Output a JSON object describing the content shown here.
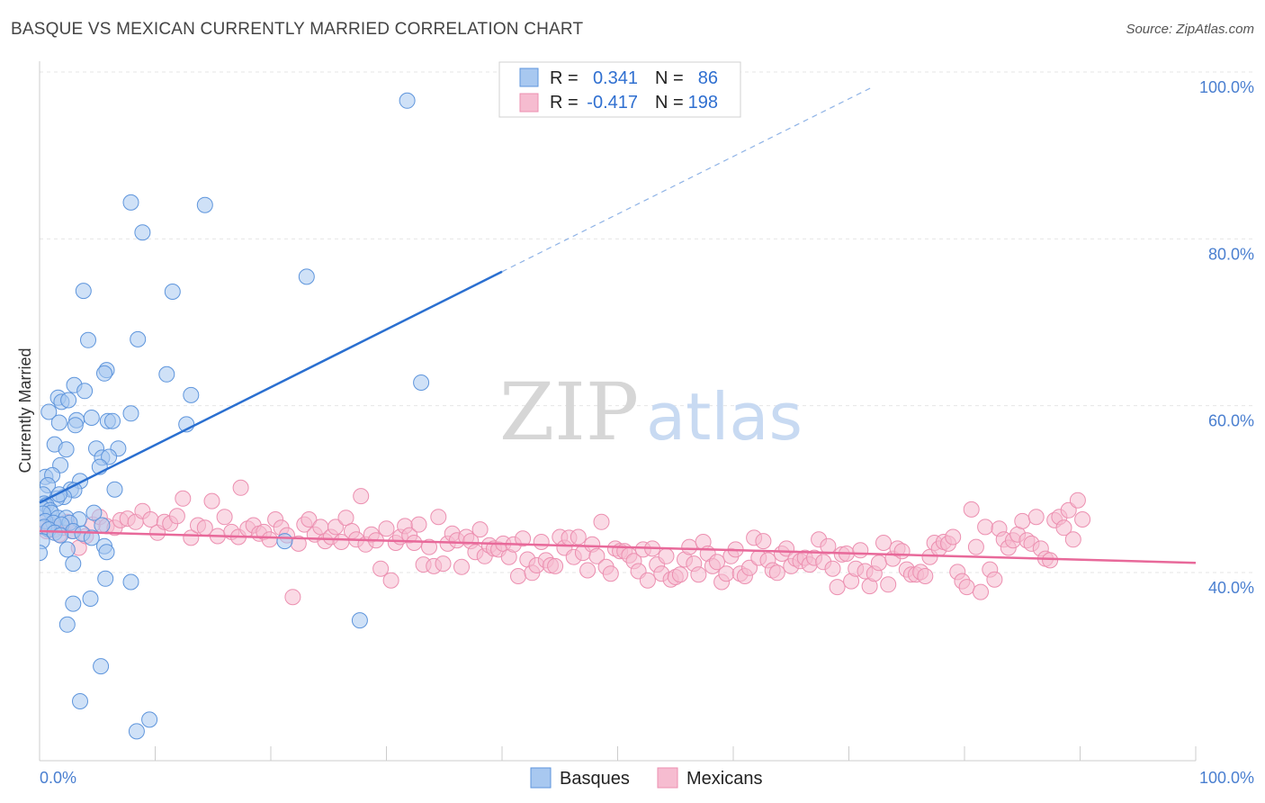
{
  "title": "BASQUE VS MEXICAN CURRENTLY MARRIED CORRELATION CHART",
  "source": "Source: ZipAtlas.com",
  "watermark": {
    "zip": "ZIP",
    "atlas": "atlas"
  },
  "chart_data": {
    "type": "scatter",
    "title": "BASQUE VS MEXICAN CURRENTLY MARRIED CORRELATION CHART",
    "xlabel": "",
    "ylabel": "Currently Married",
    "xlim": [
      0,
      100
    ],
    "ylim": [
      20,
      102
    ],
    "x_tick_labels": {
      "left": "0.0%",
      "right": "100.0%"
    },
    "y_ticks": [
      {
        "value": 100,
        "label": "100.0%"
      },
      {
        "value": 80,
        "label": "80.0%"
      },
      {
        "value": 60,
        "label": "60.0%"
      },
      {
        "value": 40,
        "label": "40.0%"
      }
    ],
    "grid": true,
    "legend_placement": "top-center",
    "series": [
      {
        "name": "Basques",
        "color": "#a8c8f0",
        "edge_color": "#5e95dc",
        "line_color": "#2a6fd0",
        "stats": {
          "r_label": "R =",
          "r": "0.341",
          "n_label": "N =",
          "n": "86"
        },
        "trend": {
          "x0": 0,
          "y0": 50.2,
          "x1": 40,
          "y1": 77.9,
          "dashed_to_x": 72,
          "dashed_to_y": 100
        },
        "points": [
          [
            31.8,
            98.4
          ],
          [
            7.9,
            86.2
          ],
          [
            14.3,
            85.9
          ],
          [
            8.9,
            82.6
          ],
          [
            23.1,
            77.3
          ],
          [
            3.8,
            75.6
          ],
          [
            11.5,
            75.5
          ],
          [
            4.2,
            69.7
          ],
          [
            8.5,
            69.8
          ],
          [
            5.8,
            66.1
          ],
          [
            5.6,
            65.7
          ],
          [
            11.0,
            65.6
          ],
          [
            33.0,
            64.6
          ],
          [
            3.0,
            64.3
          ],
          [
            3.9,
            63.6
          ],
          [
            13.1,
            63.1
          ],
          [
            1.6,
            62.8
          ],
          [
            1.9,
            62.3
          ],
          [
            2.5,
            62.5
          ],
          [
            0.8,
            61.1
          ],
          [
            7.9,
            60.9
          ],
          [
            4.5,
            60.4
          ],
          [
            3.2,
            60.1
          ],
          [
            5.9,
            60.0
          ],
          [
            6.3,
            60.0
          ],
          [
            1.7,
            59.8
          ],
          [
            3.1,
            59.5
          ],
          [
            12.7,
            59.6
          ],
          [
            1.3,
            57.2
          ],
          [
            2.3,
            56.6
          ],
          [
            4.9,
            56.7
          ],
          [
            6.8,
            56.7
          ],
          [
            5.4,
            55.6
          ],
          [
            6.0,
            55.7
          ],
          [
            1.8,
            54.7
          ],
          [
            5.2,
            54.5
          ],
          [
            0.5,
            53.3
          ],
          [
            1.1,
            53.5
          ],
          [
            3.5,
            52.8
          ],
          [
            0.7,
            52.3
          ],
          [
            2.7,
            51.8
          ],
          [
            3.0,
            51.7
          ],
          [
            6.5,
            51.8
          ],
          [
            0.3,
            51.2
          ],
          [
            2.1,
            50.9
          ],
          [
            1.5,
            50.7
          ],
          [
            1.7,
            51.2
          ],
          [
            0.4,
            50.1
          ],
          [
            0.6,
            49.9
          ],
          [
            0.2,
            49.6
          ],
          [
            0.9,
            49.3
          ],
          [
            1.0,
            49.0
          ],
          [
            0.3,
            48.9
          ],
          [
            4.7,
            49.0
          ],
          [
            1.6,
            48.4
          ],
          [
            2.3,
            48.4
          ],
          [
            3.4,
            48.2
          ],
          [
            0.5,
            48.0
          ],
          [
            1.2,
            47.8
          ],
          [
            2.6,
            47.8
          ],
          [
            1.9,
            47.6
          ],
          [
            0.4,
            47.3
          ],
          [
            5.4,
            47.5
          ],
          [
            0.8,
            47.0
          ],
          [
            1.3,
            46.6
          ],
          [
            2.9,
            46.8
          ],
          [
            1.8,
            46.3
          ],
          [
            3.7,
            46.5
          ],
          [
            4.5,
            46.0
          ],
          [
            0.2,
            45.6
          ],
          [
            5.6,
            45.0
          ],
          [
            2.4,
            44.6
          ],
          [
            5.8,
            44.3
          ],
          [
            21.2,
            45.6
          ],
          [
            0.0,
            44.2
          ],
          [
            2.9,
            42.9
          ],
          [
            5.7,
            41.1
          ],
          [
            7.9,
            40.7
          ],
          [
            4.4,
            38.7
          ],
          [
            2.9,
            38.1
          ],
          [
            27.7,
            36.1
          ],
          [
            2.4,
            35.6
          ],
          [
            5.3,
            30.6
          ],
          [
            3.5,
            26.4
          ],
          [
            9.5,
            24.2
          ],
          [
            8.4,
            22.8
          ]
        ]
      },
      {
        "name": "Mexicans",
        "color": "#f6bcd0",
        "edge_color": "#ec8fb0",
        "line_color": "#e8699a",
        "stats": {
          "r_label": "R =",
          "r": "-0.417",
          "n_label": "N =",
          "n": "198"
        },
        "trend": {
          "x0": 0,
          "y0": 46.8,
          "x1": 100,
          "y1": 43.0
        },
        "points": [
          [
            0.3,
            47.9
          ],
          [
            0.6,
            46.8
          ],
          [
            1.0,
            47.5
          ],
          [
            1.3,
            47.0
          ],
          [
            1.7,
            46.4
          ],
          [
            2.0,
            47.2
          ],
          [
            2.4,
            47.9
          ],
          [
            2.8,
            46.8
          ],
          [
            3.4,
            44.8
          ],
          [
            4.0,
            46.2
          ],
          [
            4.6,
            47.6
          ],
          [
            5.2,
            48.5
          ],
          [
            5.8,
            47.4
          ],
          [
            6.5,
            47.2
          ],
          [
            7.0,
            48.1
          ],
          [
            7.6,
            48.3
          ],
          [
            8.3,
            47.9
          ],
          [
            8.9,
            49.2
          ],
          [
            9.6,
            48.2
          ],
          [
            10.2,
            46.6
          ],
          [
            10.8,
            47.9
          ],
          [
            11.3,
            47.7
          ],
          [
            11.9,
            48.6
          ],
          [
            12.4,
            50.7
          ],
          [
            13.1,
            46.0
          ],
          [
            13.7,
            47.5
          ],
          [
            14.3,
            47.2
          ],
          [
            14.9,
            50.4
          ],
          [
            15.4,
            46.2
          ],
          [
            16.0,
            48.5
          ],
          [
            16.6,
            46.7
          ],
          [
            17.2,
            46.1
          ],
          [
            17.4,
            52.0
          ],
          [
            18.0,
            47.1
          ],
          [
            18.5,
            47.5
          ],
          [
            19.0,
            46.5
          ],
          [
            19.4,
            46.7
          ],
          [
            19.9,
            45.8
          ],
          [
            20.4,
            48.2
          ],
          [
            20.9,
            47.2
          ],
          [
            21.4,
            46.3
          ],
          [
            21.9,
            38.9
          ],
          [
            22.4,
            45.3
          ],
          [
            22.9,
            47.6
          ],
          [
            23.3,
            48.2
          ],
          [
            23.8,
            46.4
          ],
          [
            24.3,
            47.3
          ],
          [
            24.7,
            45.6
          ],
          [
            25.2,
            46.1
          ],
          [
            25.6,
            47.3
          ],
          [
            26.1,
            45.5
          ],
          [
            26.5,
            48.4
          ],
          [
            27.0,
            46.8
          ],
          [
            27.4,
            45.8
          ],
          [
            27.8,
            51.0
          ],
          [
            28.2,
            45.2
          ],
          [
            28.7,
            46.4
          ],
          [
            29.1,
            45.7
          ],
          [
            29.5,
            42.3
          ],
          [
            30.0,
            47.1
          ],
          [
            30.4,
            40.9
          ],
          [
            30.8,
            45.4
          ],
          [
            31.2,
            46.1
          ],
          [
            31.6,
            47.4
          ],
          [
            32.0,
            46.3
          ],
          [
            32.4,
            45.4
          ],
          [
            32.8,
            47.6
          ],
          [
            33.2,
            42.8
          ],
          [
            33.7,
            44.9
          ],
          [
            34.1,
            42.6
          ],
          [
            34.5,
            48.5
          ],
          [
            34.9,
            42.9
          ],
          [
            35.3,
            45.3
          ],
          [
            35.7,
            46.5
          ],
          [
            36.1,
            45.7
          ],
          [
            36.5,
            42.5
          ],
          [
            36.9,
            46.1
          ],
          [
            37.3,
            45.6
          ],
          [
            37.7,
            44.3
          ],
          [
            38.1,
            47.0
          ],
          [
            38.5,
            43.8
          ],
          [
            38.9,
            45.1
          ],
          [
            39.3,
            44.7
          ],
          [
            39.7,
            44.6
          ],
          [
            40.1,
            45.3
          ],
          [
            40.6,
            43.7
          ],
          [
            41.0,
            45.2
          ],
          [
            41.4,
            41.4
          ],
          [
            41.8,
            45.9
          ],
          [
            42.2,
            43.4
          ],
          [
            42.6,
            41.8
          ],
          [
            43.0,
            42.7
          ],
          [
            43.4,
            45.5
          ],
          [
            43.8,
            43.3
          ],
          [
            44.2,
            42.7
          ],
          [
            44.6,
            42.6
          ],
          [
            45.0,
            46.1
          ],
          [
            45.4,
            44.8
          ],
          [
            45.8,
            46.0
          ],
          [
            46.2,
            43.7
          ],
          [
            46.6,
            46.1
          ],
          [
            47.0,
            44.2
          ],
          [
            47.4,
            42.1
          ],
          [
            47.8,
            45.2
          ],
          [
            48.2,
            43.8
          ],
          [
            48.6,
            47.9
          ],
          [
            49.0,
            42.5
          ],
          [
            49.4,
            41.7
          ],
          [
            49.8,
            44.7
          ],
          [
            50.2,
            44.4
          ],
          [
            50.6,
            44.4
          ],
          [
            51.0,
            43.9
          ],
          [
            51.4,
            43.2
          ],
          [
            51.8,
            42.0
          ],
          [
            52.2,
            44.6
          ],
          [
            52.6,
            40.9
          ],
          [
            53.0,
            44.7
          ],
          [
            53.4,
            42.8
          ],
          [
            53.8,
            41.7
          ],
          [
            54.2,
            43.8
          ],
          [
            54.6,
            41.0
          ],
          [
            55.0,
            41.3
          ],
          [
            55.4,
            41.6
          ],
          [
            55.8,
            43.4
          ],
          [
            56.2,
            44.9
          ],
          [
            56.6,
            42.9
          ],
          [
            57.0,
            41.6
          ],
          [
            57.4,
            45.5
          ],
          [
            57.8,
            44.1
          ],
          [
            58.2,
            42.6
          ],
          [
            58.6,
            43.1
          ],
          [
            59.0,
            40.7
          ],
          [
            59.4,
            41.7
          ],
          [
            59.8,
            43.8
          ],
          [
            60.2,
            44.6
          ],
          [
            60.6,
            41.7
          ],
          [
            61.0,
            41.4
          ],
          [
            61.4,
            42.4
          ],
          [
            61.8,
            46.0
          ],
          [
            62.2,
            43.6
          ],
          [
            62.6,
            45.6
          ],
          [
            63.0,
            43.3
          ],
          [
            63.4,
            42.1
          ],
          [
            63.8,
            41.8
          ],
          [
            64.2,
            44.1
          ],
          [
            64.6,
            44.7
          ],
          [
            65.0,
            42.6
          ],
          [
            65.4,
            43.5
          ],
          [
            65.8,
            43.2
          ],
          [
            66.2,
            43.6
          ],
          [
            66.6,
            42.8
          ],
          [
            67.0,
            43.6
          ],
          [
            67.4,
            45.8
          ],
          [
            67.8,
            43.1
          ],
          [
            68.2,
            45.0
          ],
          [
            68.6,
            42.3
          ],
          [
            69.0,
            40.1
          ],
          [
            69.4,
            44.0
          ],
          [
            69.8,
            44.1
          ],
          [
            70.2,
            40.8
          ],
          [
            70.6,
            42.3
          ],
          [
            71.0,
            44.5
          ],
          [
            71.4,
            42.0
          ],
          [
            71.8,
            40.2
          ],
          [
            72.2,
            41.7
          ],
          [
            72.6,
            43.0
          ],
          [
            73.0,
            45.4
          ],
          [
            73.4,
            40.4
          ],
          [
            73.8,
            43.5
          ],
          [
            74.2,
            44.7
          ],
          [
            74.6,
            44.4
          ],
          [
            75.0,
            42.2
          ],
          [
            75.4,
            41.6
          ],
          [
            75.8,
            41.6
          ],
          [
            76.2,
            41.9
          ],
          [
            76.6,
            41.4
          ],
          [
            77.0,
            43.7
          ],
          [
            77.4,
            45.4
          ],
          [
            77.8,
            44.7
          ],
          [
            78.2,
            45.5
          ],
          [
            78.6,
            45.3
          ],
          [
            79.0,
            46.1
          ],
          [
            79.4,
            41.9
          ],
          [
            79.8,
            40.8
          ],
          [
            80.2,
            40.1
          ],
          [
            80.6,
            49.4
          ],
          [
            81.0,
            44.9
          ],
          [
            81.4,
            39.5
          ],
          [
            81.8,
            47.3
          ],
          [
            82.2,
            42.2
          ],
          [
            82.6,
            41.0
          ],
          [
            83.0,
            47.1
          ],
          [
            83.4,
            45.8
          ],
          [
            83.8,
            44.8
          ],
          [
            84.2,
            45.7
          ],
          [
            84.6,
            46.4
          ],
          [
            85.0,
            48.0
          ],
          [
            85.4,
            45.7
          ],
          [
            85.8,
            45.3
          ],
          [
            86.2,
            48.5
          ],
          [
            86.6,
            44.7
          ],
          [
            87.0,
            43.5
          ],
          [
            87.4,
            43.3
          ],
          [
            87.8,
            48.1
          ],
          [
            88.2,
            48.5
          ],
          [
            88.6,
            47.2
          ],
          [
            89.0,
            49.3
          ],
          [
            89.4,
            45.8
          ],
          [
            89.8,
            50.5
          ],
          [
            90.2,
            48.2
          ]
        ]
      }
    ]
  }
}
